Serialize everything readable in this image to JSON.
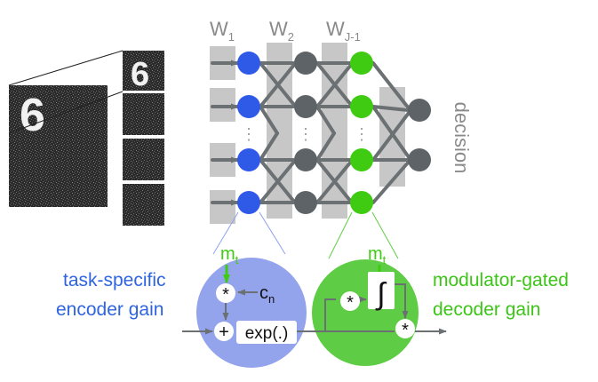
{
  "layers": {
    "w1": "W",
    "w1_sub": "1",
    "w2": "W",
    "w2_sub": "2",
    "wj": "W",
    "wj_sub": "J-1"
  },
  "decision_label": "decision",
  "encoder": {
    "label_line1": "task-specific",
    "label_line2": "encoder gain",
    "m_label": "m",
    "m_sub": "t",
    "c_label": "c",
    "c_sub": "n",
    "mult_symbol": "*",
    "plus_symbol": "+",
    "exp_label": "exp(.)"
  },
  "decoder": {
    "label_line1": "modulator-gated",
    "label_line2": "decoder gain",
    "m_label": "m",
    "m_sub": "t",
    "mult_symbol_left": "*",
    "mult_symbol_out": "*",
    "integral_symbol": "∫"
  },
  "digit_label": "6",
  "ellipsis": "⋮",
  "colors": {
    "blue_node": "#2f5ae8",
    "blue_circle": "#93a3ec",
    "blue_text": "#2f64e0",
    "green_node": "#3ecb12",
    "green_circle": "#5fcc45",
    "green_text": "#3cc417",
    "gray_node": "#5d6366",
    "arrow": "#6b7073",
    "panel": "#c7c7c7",
    "noise_bg": "#2d2d2d"
  }
}
